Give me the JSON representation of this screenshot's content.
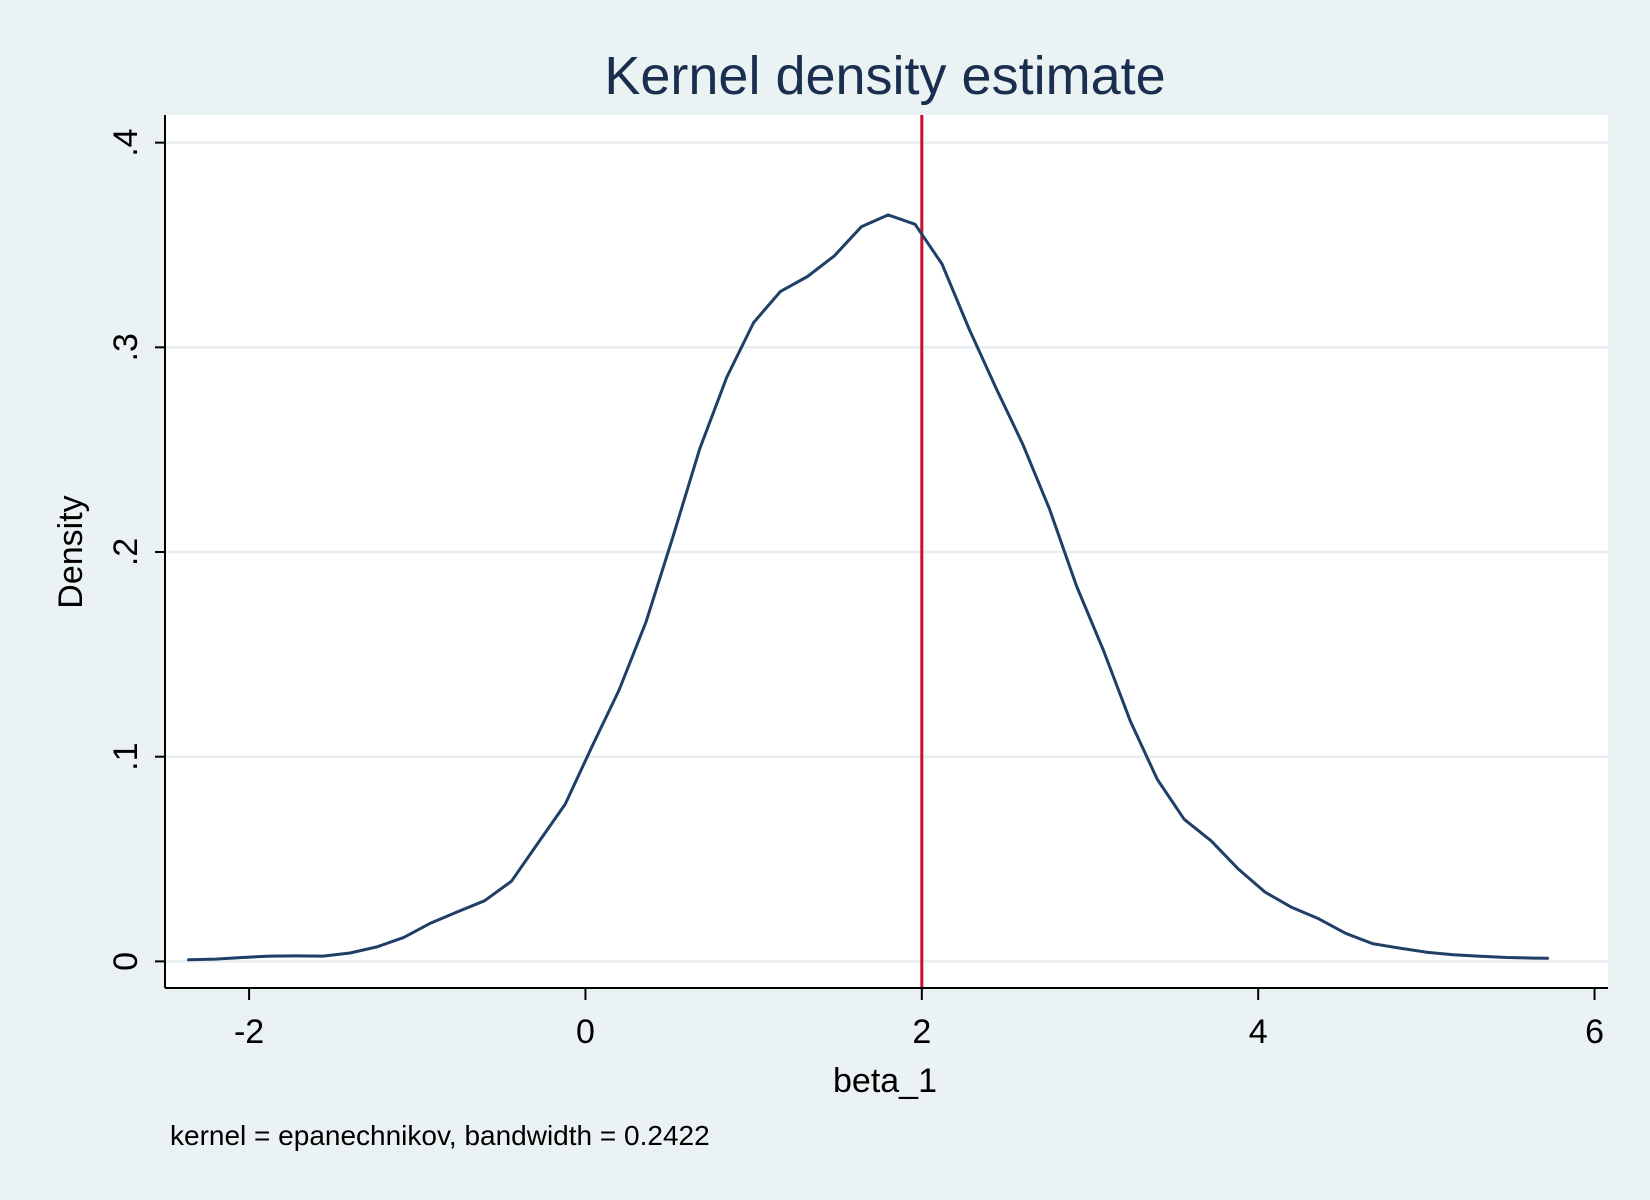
{
  "chart_data": {
    "type": "line",
    "title": "Kernel density estimate",
    "xlabel": "beta_1",
    "ylabel": "Density",
    "note": "kernel = epanechnikov, bandwidth = 0.2422",
    "xlim": [
      -2.5,
      6.08
    ],
    "ylim": [
      -0.013,
      0.4135
    ],
    "x_ticks": [
      -2,
      0,
      2,
      4,
      6
    ],
    "x_tick_labels": [
      "-2",
      "0",
      "2",
      "4",
      "6"
    ],
    "y_ticks": [
      0,
      0.1,
      0.2,
      0.3,
      0.4
    ],
    "y_tick_labels": [
      "0",
      ".1",
      ".2",
      ".3",
      ".4"
    ],
    "grid": true,
    "reference_line": {
      "x": 2,
      "color": "#c8102e"
    },
    "series": [
      {
        "color": "#1f3f66",
        "x": [
          -2.36,
          -2.2,
          -2.04,
          -1.88,
          -1.72,
          -1.56,
          -1.4,
          -1.24,
          -1.08,
          -0.92,
          -0.76,
          -0.6,
          -0.44,
          -0.28,
          -0.12,
          0.04,
          0.2,
          0.36,
          0.52,
          0.68,
          0.84,
          1.0,
          1.16,
          1.32,
          1.48,
          1.64,
          1.8,
          1.96,
          2.12,
          2.28,
          2.44,
          2.6,
          2.76,
          2.92,
          3.08,
          3.24,
          3.4,
          3.56,
          3.72,
          3.88,
          4.04,
          4.2,
          4.36,
          4.52,
          4.68,
          4.84,
          5.0,
          5.16,
          5.32,
          5.48,
          5.64,
          5.72
        ],
        "y": [
          0.0008,
          0.0011,
          0.0019,
          0.0026,
          0.0027,
          0.0026,
          0.0041,
          0.0071,
          0.0117,
          0.0187,
          0.0243,
          0.0296,
          0.0392,
          0.0581,
          0.0769,
          0.1052,
          0.1326,
          0.1658,
          0.2074,
          0.2505,
          0.2853,
          0.3121,
          0.3273,
          0.3346,
          0.3447,
          0.3589,
          0.3647,
          0.3601,
          0.3407,
          0.3092,
          0.2803,
          0.2527,
          0.2209,
          0.1834,
          0.1519,
          0.1173,
          0.0889,
          0.0694,
          0.0589,
          0.0453,
          0.0339,
          0.0264,
          0.0208,
          0.0137,
          0.0087,
          0.0065,
          0.0045,
          0.0032,
          0.0025,
          0.0019,
          0.0016,
          0.0015
        ]
      }
    ]
  }
}
